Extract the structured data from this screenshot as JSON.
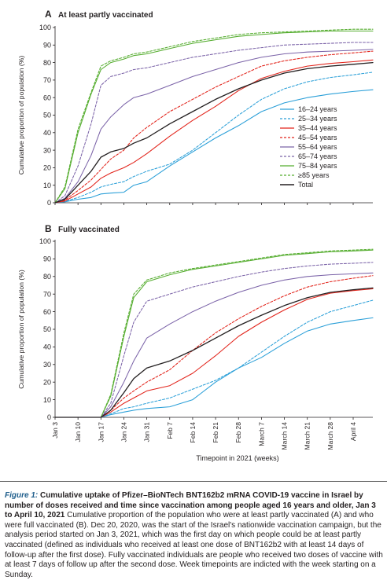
{
  "chart_data": [
    {
      "type": "line",
      "panel_letter": "A",
      "title": "At least partly vaccinated",
      "ylabel": "Cumulative proportion of population (%)",
      "xlabel": "",
      "ylim": [
        0,
        100
      ],
      "yticks": [
        0,
        10,
        20,
        30,
        40,
        50,
        60,
        70,
        80,
        90,
        100
      ],
      "x_tick_labels": [],
      "grid": false,
      "legend_position": "right",
      "x": [
        3,
        6,
        10,
        14,
        17,
        20,
        24,
        27,
        31,
        38,
        45,
        52,
        59,
        66,
        73,
        80,
        87,
        94,
        100
      ],
      "series": [
        {
          "name": "16–24 years",
          "color": "#2a9fd8",
          "dash": "solid",
          "values": [
            0,
            0.5,
            2,
            3,
            5,
            5.5,
            6,
            10,
            12,
            21,
            29,
            37,
            44,
            52,
            57,
            60,
            62,
            63.5,
            64.5
          ]
        },
        {
          "name": "25–34 years",
          "color": "#2a9fd8",
          "dash": "dashed",
          "values": [
            0,
            0.8,
            3,
            6,
            9,
            10.5,
            12,
            15,
            18,
            22,
            30,
            40,
            50,
            59,
            65,
            69,
            71.5,
            73,
            74.5
          ]
        },
        {
          "name": "35–44 years",
          "color": "#e2231a",
          "dash": "solid",
          "values": [
            0,
            1,
            5,
            9,
            14,
            17,
            20,
            23,
            28,
            38,
            47,
            55,
            64,
            71,
            75,
            78,
            79.5,
            80.5,
            81.5
          ]
        },
        {
          "name": "45–54 years",
          "color": "#e2231a",
          "dash": "dashed",
          "values": [
            0,
            1.5,
            7,
            13,
            19,
            25,
            30,
            37,
            43,
            52,
            59,
            66,
            72,
            78,
            81,
            83,
            84.5,
            85.5,
            86.5
          ]
        },
        {
          "name": "55–64 years",
          "color": "#7b63a8",
          "dash": "solid",
          "values": [
            0,
            2.5,
            12,
            27,
            42,
            49,
            56,
            60,
            62,
            67,
            72,
            76,
            80,
            83,
            85,
            86,
            86.5,
            87,
            87.5
          ]
        },
        {
          "name": "65–74 years",
          "color": "#7b63a8",
          "dash": "dashed",
          "values": [
            0,
            4,
            21,
            45,
            67,
            72,
            74,
            76,
            77,
            80,
            83,
            85,
            87,
            88.5,
            90,
            90.5,
            91,
            91.5,
            91.5
          ]
        },
        {
          "name": "75–84 years",
          "color": "#55ad2f",
          "dash": "solid",
          "values": [
            0,
            8,
            40,
            62,
            76,
            80,
            82,
            84,
            85,
            88,
            91,
            93,
            95,
            96,
            97,
            97.5,
            98,
            98,
            98
          ]
        },
        {
          "name": "≥85 years",
          "color": "#55ad2f",
          "dash": "dashed",
          "values": [
            0,
            9,
            42,
            63,
            78,
            81,
            83,
            85,
            86,
            89,
            92,
            94,
            96,
            97,
            97.5,
            98,
            98.5,
            99,
            99
          ]
        },
        {
          "name": "Total",
          "color": "#231f20",
          "dash": "solid",
          "values": [
            0,
            2,
            10,
            18,
            26,
            29,
            31,
            34,
            37,
            45,
            52,
            59,
            65,
            70,
            74,
            76.5,
            78,
            79,
            80
          ]
        }
      ]
    },
    {
      "type": "line",
      "panel_letter": "B",
      "title": "Fully vaccinated",
      "ylabel": "Cumulative proportion of population (%)",
      "xlabel": "Timepoint in 2021 (weeks)",
      "ylim": [
        0,
        100
      ],
      "yticks": [
        0,
        10,
        20,
        30,
        40,
        50,
        60,
        70,
        80,
        90,
        100
      ],
      "x_tick_labels": [
        "Jan 3",
        "Jan 10",
        "Jan 17",
        "Jan 24",
        "Jan 31",
        "Feb 7",
        "Feb 14",
        "Feb 21",
        "Feb 28",
        "March 7",
        "March 14",
        "March 21",
        "March 28",
        "April 4"
      ],
      "grid": false,
      "x": [
        3,
        10,
        17,
        20,
        24,
        27,
        31,
        38,
        45,
        52,
        59,
        66,
        73,
        80,
        87,
        94,
        100
      ],
      "series": [
        {
          "name": "16–24 years",
          "color": "#2a9fd8",
          "dash": "solid",
          "values": [
            0,
            0,
            0,
            1.5,
            3,
            4,
            5,
            6,
            10,
            20,
            28,
            34,
            42,
            49,
            53,
            55,
            56.5
          ]
        },
        {
          "name": "25–34 years",
          "color": "#2a9fd8",
          "dash": "dashed",
          "values": [
            0,
            0,
            0,
            2,
            5,
            6,
            8,
            11,
            16,
            21,
            28,
            37,
            46,
            54,
            60,
            63.5,
            66.5
          ]
        },
        {
          "name": "35–44 years",
          "color": "#e2231a",
          "dash": "solid",
          "values": [
            0,
            0,
            0,
            3,
            8,
            11,
            15,
            18,
            25,
            35,
            46,
            54,
            61,
            67,
            70.5,
            72,
            73
          ]
        },
        {
          "name": "45–54 years",
          "color": "#e2231a",
          "dash": "dashed",
          "values": [
            0,
            0,
            0,
            4,
            11,
            15,
            20,
            27,
            38,
            48,
            56,
            63,
            69,
            74,
            77,
            79,
            80.5
          ]
        },
        {
          "name": "55–64 years",
          "color": "#7b63a8",
          "dash": "solid",
          "values": [
            0,
            0,
            0,
            6,
            20,
            32,
            45,
            53,
            60,
            66,
            71,
            75,
            78,
            80,
            81,
            81.5,
            82
          ]
        },
        {
          "name": "65–74 years",
          "color": "#7b63a8",
          "dash": "dashed",
          "values": [
            0,
            0,
            0,
            8,
            35,
            54,
            66,
            70,
            74,
            77,
            80,
            82.5,
            84.5,
            86,
            87,
            87.5,
            88
          ]
        },
        {
          "name": "75–84 years",
          "color": "#55ad2f",
          "dash": "solid",
          "values": [
            0,
            0,
            0,
            12,
            46,
            68,
            77,
            81,
            84,
            86,
            88,
            90,
            92,
            93,
            94,
            94.5,
            95
          ]
        },
        {
          "name": "≥85 years",
          "color": "#55ad2f",
          "dash": "dashed",
          "values": [
            0,
            0,
            0,
            13,
            48,
            70,
            78,
            82,
            84.5,
            86.5,
            88.5,
            90.5,
            92.5,
            93.5,
            94.5,
            95,
            95.5
          ]
        },
        {
          "name": "Total",
          "color": "#231f20",
          "dash": "solid",
          "values": [
            0,
            0,
            0,
            4,
            14,
            22,
            28,
            32,
            38,
            45,
            52,
            58,
            63.5,
            68,
            71,
            72.5,
            73.5
          ]
        }
      ]
    }
  ],
  "caption": {
    "figure_label": "Figure 1:",
    "title": "Cumulative uptake of Pfizer–BioNTech BNT162b2 mRNA COVID-19 vaccine in Israel by number of doses received and time since vaccination among people aged 16 years and older, Jan 3 to April 10, 2021",
    "body": "Cumulative proportion of the population who were at least partly vaccinated (A) and who were full vaccinated (B). Dec 20, 2020, was the start of the Israel's nationwide vaccination campaign, but the analysis period started on Jan 3, 2021, which was the first day on which people could be at least partly vaccinated (defined as individuals who received at least one dose of BNT162b2 with at least 14 days of follow-up after the first dose). Fully vaccinated individuals are people who received two doses of vaccine with at least 7 days of follow up after the second dose. Week timepoints are indicted with the week starting on a Sunday."
  }
}
